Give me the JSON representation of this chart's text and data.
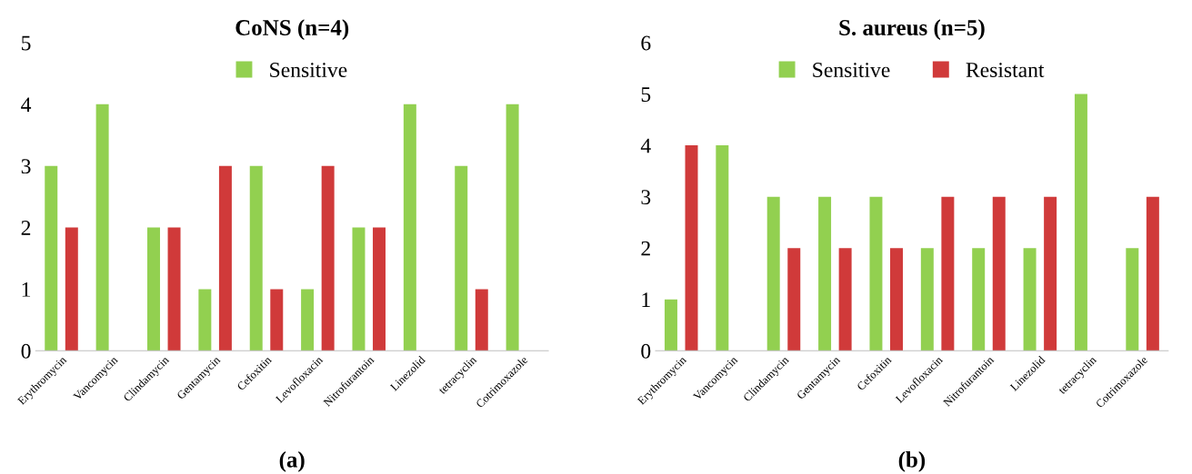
{
  "chart_data": [
    {
      "type": "bar",
      "title": "CoNS (n=4)",
      "categories": [
        "Erythromycin",
        "Vancomycin",
        "Clindamycin",
        "Gentamycin",
        "Cefoxitin",
        "Levofloxacin",
        "Nitrofurantoin",
        "Linezolid",
        "tetracyclin",
        "Cotrimoxazole"
      ],
      "series": [
        {
          "name": "Sensitive",
          "color": "#92d050",
          "values": [
            3,
            4,
            2,
            1,
            3,
            1,
            2,
            4,
            3,
            4
          ]
        },
        {
          "color": "#d03a3a",
          "values": [
            2,
            0,
            2,
            3,
            1,
            3,
            2,
            0,
            1,
            0
          ]
        }
      ],
      "ylim": [
        0,
        5
      ],
      "yticks": [
        0,
        1,
        2,
        3,
        4,
        5
      ],
      "legend": "top",
      "grid": false,
      "annotations": [
        "(a)"
      ]
    },
    {
      "type": "bar",
      "title": "S. aureus (n=5)",
      "categories": [
        "Erythromycin",
        "Vancomycin",
        "Clindamycin",
        "Gentamycin",
        "Cefoxitin",
        "Levofloxacin",
        "Nitrofurantoin",
        "Linezolid",
        "tetracyclin",
        "Cotrimoxazole"
      ],
      "series": [
        {
          "name": "Sensitive",
          "color": "#92d050",
          "values": [
            1,
            4,
            3,
            3,
            3,
            2,
            2,
            2,
            5,
            2
          ]
        },
        {
          "name": "Resistant",
          "color": "#d03a3a",
          "values": [
            4,
            0,
            2,
            2,
            2,
            3,
            3,
            3,
            0,
            3
          ]
        }
      ],
      "ylim": [
        0,
        6
      ],
      "yticks": [
        0,
        1,
        2,
        3,
        4,
        5,
        6
      ],
      "legend": "top",
      "grid": false,
      "annotations": [
        "(b)"
      ]
    }
  ]
}
